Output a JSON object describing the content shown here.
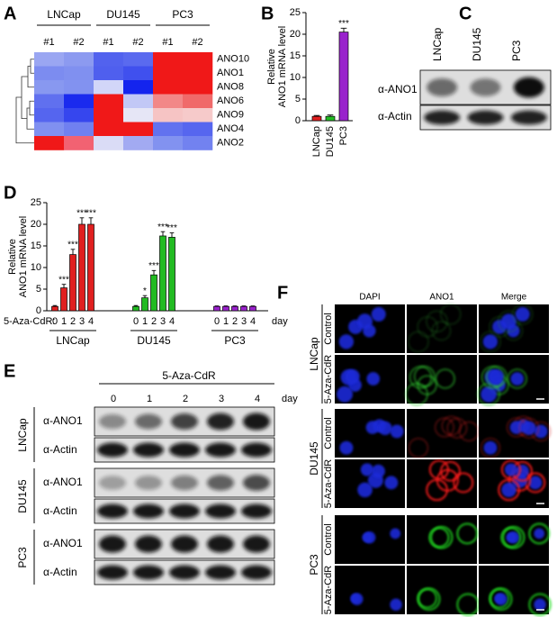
{
  "panel_labels": [
    "A",
    "B",
    "C",
    "D",
    "E",
    "F"
  ],
  "heatmap": {
    "groups": [
      "LNCap",
      "DU145",
      "PC3"
    ],
    "replicates": [
      "#1",
      "#2",
      "#1",
      "#2",
      "#1",
      "#2"
    ],
    "rows": [
      "ANO10",
      "ANO1",
      "ANO8",
      "ANO6",
      "ANO9",
      "ANO4",
      "ANO2"
    ],
    "cell_colors": [
      [
        "#9aa6f2",
        "#8c9af0",
        "#5262ee",
        "#5a6aef",
        "#f01818",
        "#f01818"
      ],
      [
        "#7c8cf0",
        "#8090f0",
        "#4f5fee",
        "#4050ee",
        "#f01818",
        "#f01818"
      ],
      [
        "#8898f0",
        "#8292f0",
        "#d2d6f8",
        "#1424ee",
        "#f01818",
        "#f01818"
      ],
      [
        "#6070ef",
        "#1a2aee",
        "#f01818",
        "#c2c8f6",
        "#f28888",
        "#f06a6a"
      ],
      [
        "#5565ef",
        "#3646ee",
        "#f01818",
        "#e6e6f6",
        "#f6c4c4",
        "#f6caca"
      ],
      [
        "#8090f0",
        "#7080f0",
        "#f01818",
        "#f01818",
        "#6272ef",
        "#5666ef"
      ],
      [
        "#f01818",
        "#f26272",
        "#dadcf6",
        "#a2aaf2",
        "#8292f0",
        "#7282f0"
      ]
    ]
  },
  "chart_data": [
    {
      "type": "bar",
      "ylabel": [
        "Relative",
        "ANO1 mRNA level"
      ],
      "categories": [
        "LNCap",
        "DU145",
        "PC3"
      ],
      "values": [
        1,
        1,
        20.5
      ],
      "errors": [
        0.2,
        0.3,
        0.9
      ],
      "colors": [
        "#e02020",
        "#22bb22",
        "#9922cc"
      ],
      "annotations": [
        null,
        null,
        "***"
      ],
      "ylim": [
        0,
        25
      ],
      "yticks": [
        0,
        5,
        10,
        15,
        20,
        25
      ]
    },
    {
      "type": "grouped_bar",
      "ylabel": [
        "Relative",
        "ANO1 mRNA level"
      ],
      "xlabel": "5-Aza-CdR:",
      "xunit": "day",
      "categories": [
        "0",
        "1",
        "2",
        "3",
        "4"
      ],
      "series": [
        {
          "name": "LNCap",
          "color": "#e02020",
          "values": [
            1,
            5.3,
            13,
            20,
            20
          ],
          "errors": [
            0.2,
            0.8,
            1.2,
            1.5,
            1.5
          ],
          "annotations": [
            null,
            "***",
            "***",
            "***",
            "***"
          ]
        },
        {
          "name": "DU145",
          "color": "#22bb22",
          "values": [
            1,
            3,
            8.3,
            17.3,
            17
          ],
          "errors": [
            0.2,
            0.5,
            1.0,
            1.0,
            1.0
          ],
          "annotations": [
            null,
            "*",
            "***",
            "***",
            "***"
          ]
        },
        {
          "name": "PC3",
          "color": "#9922cc",
          "values": [
            1,
            1,
            1,
            1,
            1
          ],
          "errors": [
            0.1,
            0.1,
            0.1,
            0.1,
            0.1
          ],
          "annotations": [
            null,
            null,
            null,
            null,
            null
          ]
        }
      ],
      "ylim": [
        0,
        25
      ],
      "yticks": [
        0,
        5,
        10,
        15,
        20,
        25
      ]
    }
  ],
  "blot_c": {
    "lanes": [
      "LNCap",
      "DU145",
      "PC3"
    ],
    "rows": [
      "α-ANO1",
      "α-Actin"
    ]
  },
  "blot_e": {
    "treatment": "5-Aza-CdR",
    "days": [
      "0",
      "1",
      "2",
      "3",
      "4"
    ],
    "unit": "day",
    "groups": [
      "LNCap",
      "DU145",
      "PC3"
    ],
    "rows": [
      "α-ANO1",
      "α-Actin"
    ]
  },
  "microscopy": {
    "channels": [
      "DAPI",
      "ANO1",
      "Merge"
    ],
    "groups": [
      "LNCap",
      "DU145",
      "PC3"
    ],
    "conditions": [
      "Control",
      "5-Aza-CdR"
    ]
  }
}
